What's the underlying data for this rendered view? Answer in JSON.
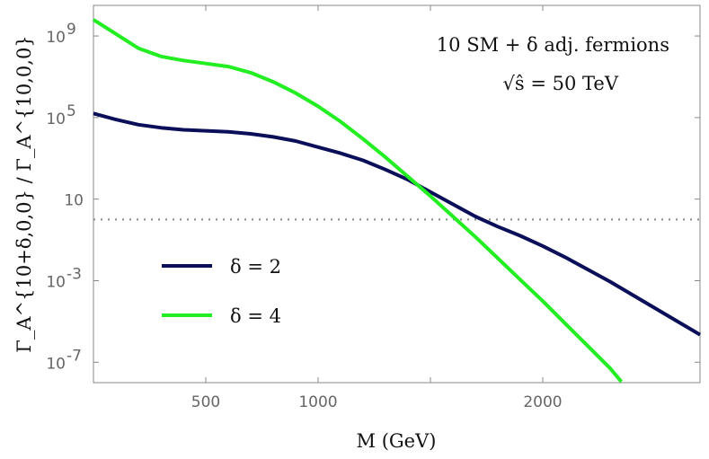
{
  "chart_data": {
    "type": "line",
    "title": "",
    "xlabel": "M (GeV)",
    "ylabel": "Γ_A^{10+δ,0,0} / Γ_A^{10,0,0}",
    "yscale": "log",
    "xlim": [
      0,
      2700
    ],
    "ylim_log10": [
      -8,
      10.5
    ],
    "x_ticks": [
      {
        "value": 500,
        "label": "500"
      },
      {
        "value": 1000,
        "label": "1000"
      },
      {
        "value": 2000,
        "label": "2000"
      }
    ],
    "x_tick_positions": [
      500,
      1000,
      1500,
      2000
    ],
    "y_ticks": [
      {
        "log10": 9,
        "label": "10",
        "exp": "9"
      },
      {
        "log10": 5,
        "label": "10",
        "exp": "5"
      },
      {
        "log10": 1,
        "label": "10",
        "exp": ""
      },
      {
        "log10": -3,
        "label": "10",
        "exp": "-3"
      },
      {
        "log10": -7,
        "label": "10",
        "exp": "-7"
      }
    ],
    "reference_line": {
      "log10": 0,
      "style": "dotted"
    },
    "annotation": {
      "line1": "10 SM + δ adj. fermions",
      "line2": "√ŝ = 50 TeV"
    },
    "series": [
      {
        "name": "δ = 2",
        "color": "#0b0f5a",
        "points": [
          [
            0,
            5.2
          ],
          [
            100,
            4.9
          ],
          [
            200,
            4.65
          ],
          [
            300,
            4.5
          ],
          [
            400,
            4.4
          ],
          [
            500,
            4.35
          ],
          [
            600,
            4.3
          ],
          [
            700,
            4.2
          ],
          [
            800,
            4.05
          ],
          [
            900,
            3.85
          ],
          [
            1000,
            3.55
          ],
          [
            1100,
            3.25
          ],
          [
            1200,
            2.9
          ],
          [
            1300,
            2.45
          ],
          [
            1400,
            1.95
          ],
          [
            1500,
            1.35
          ],
          [
            1600,
            0.75
          ],
          [
            1700,
            0.15
          ],
          [
            1800,
            -0.35
          ],
          [
            1900,
            -0.8
          ],
          [
            2000,
            -1.3
          ],
          [
            2100,
            -1.85
          ],
          [
            2200,
            -2.45
          ],
          [
            2300,
            -3.05
          ],
          [
            2400,
            -3.7
          ],
          [
            2500,
            -4.35
          ],
          [
            2600,
            -5.0
          ],
          [
            2700,
            -5.65
          ]
        ]
      },
      {
        "name": "δ = 4",
        "color": "#22ee22",
        "points": [
          [
            0,
            9.8
          ],
          [
            100,
            9.1
          ],
          [
            200,
            8.4
          ],
          [
            300,
            8.0
          ],
          [
            400,
            7.8
          ],
          [
            500,
            7.65
          ],
          [
            600,
            7.5
          ],
          [
            700,
            7.2
          ],
          [
            800,
            6.75
          ],
          [
            900,
            6.2
          ],
          [
            1000,
            5.55
          ],
          [
            1100,
            4.8
          ],
          [
            1200,
            3.95
          ],
          [
            1300,
            3.05
          ],
          [
            1400,
            2.1
          ],
          [
            1500,
            1.15
          ],
          [
            1600,
            0.15
          ],
          [
            1700,
            -0.85
          ],
          [
            1800,
            -1.9
          ],
          [
            1900,
            -2.95
          ],
          [
            2000,
            -4.0
          ],
          [
            2100,
            -5.1
          ],
          [
            2200,
            -6.2
          ],
          [
            2300,
            -7.3
          ],
          [
            2350,
            -7.95
          ]
        ]
      }
    ]
  }
}
